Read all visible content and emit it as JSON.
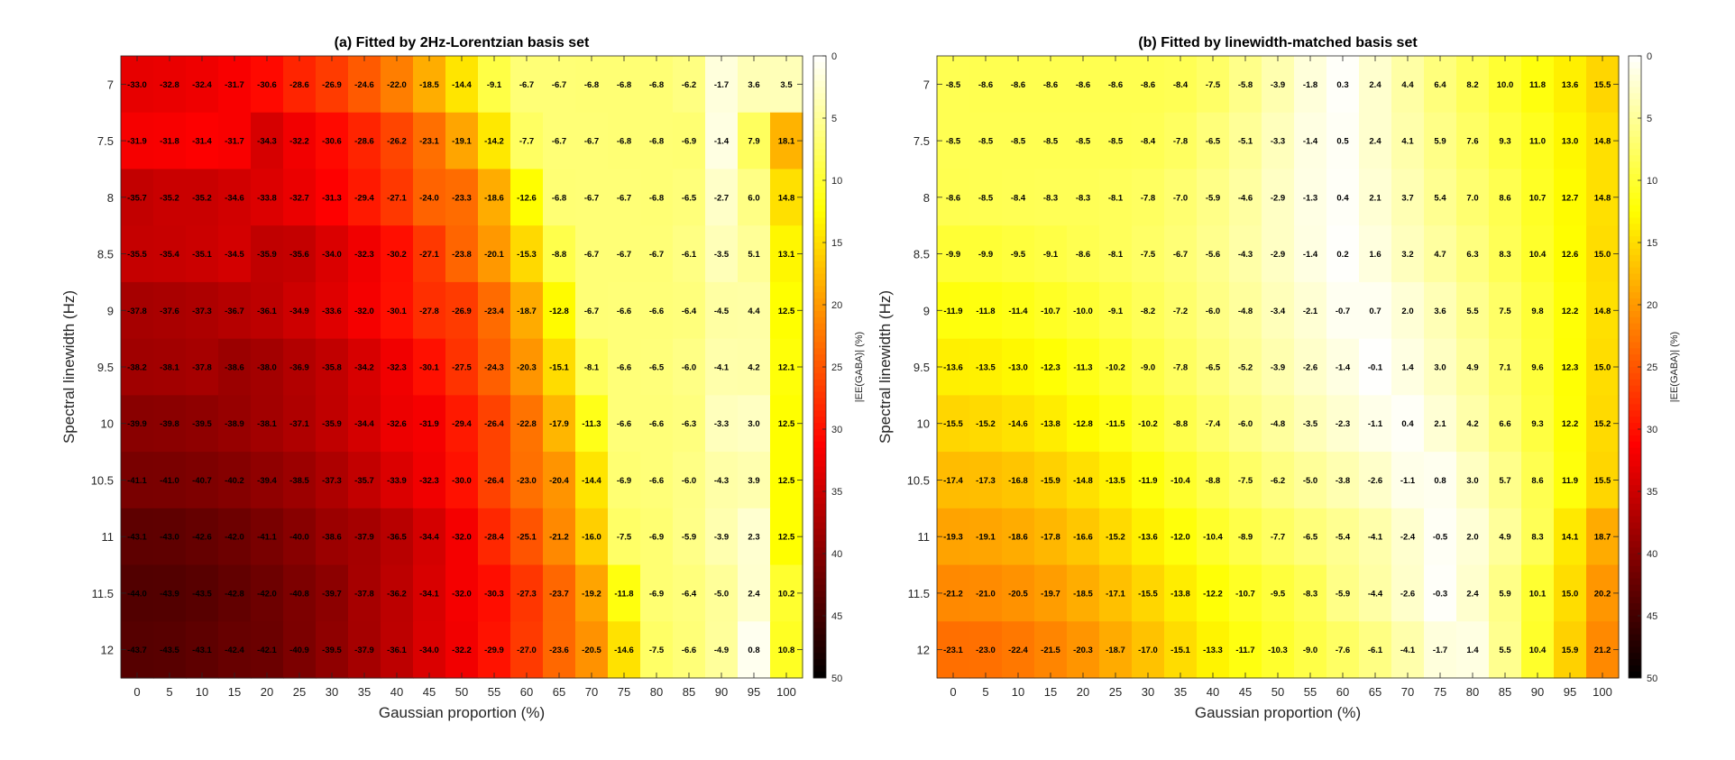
{
  "chart_data": [
    {
      "type": "heatmap",
      "title": "(a) Fitted by 2Hz-Lorentzian basis set",
      "xlabel": "Gaussian proportion (%)",
      "ylabel": "Spectral linewidth (Hz)",
      "x": [
        "0",
        "5",
        "10",
        "15",
        "20",
        "25",
        "30",
        "35",
        "40",
        "45",
        "50",
        "55",
        "60",
        "65",
        "70",
        "75",
        "80",
        "85",
        "90",
        "95",
        "100"
      ],
      "y": [
        "7",
        "7.5",
        "8",
        "8.5",
        "9",
        "9.5",
        "10",
        "10.5",
        "11",
        "11.5",
        "12"
      ],
      "colorbar": {
        "label": "|EE(GABA)| (%)",
        "range": [
          0,
          50
        ],
        "ticks": [
          "0",
          "5",
          "10",
          "15",
          "20",
          "25",
          "30",
          "35",
          "40",
          "45",
          "50"
        ],
        "colormap": "hot (reversed)"
      },
      "values": [
        [
          -33.0,
          -32.8,
          -32.4,
          -31.7,
          -30.6,
          -28.6,
          -26.9,
          -24.6,
          -22.0,
          -18.5,
          -14.4,
          -9.1,
          -6.7,
          -6.7,
          -6.8,
          -6.8,
          -6.8,
          -6.2,
          -1.7,
          3.6,
          3.5
        ],
        [
          -31.9,
          -31.8,
          -31.4,
          -31.7,
          -34.3,
          -32.2,
          -30.6,
          -28.6,
          -26.2,
          -23.1,
          -19.1,
          -14.2,
          -7.7,
          -6.7,
          -6.7,
          -6.8,
          -6.8,
          -6.9,
          -1.4,
          7.9,
          18.1
        ],
        [
          -35.7,
          -35.2,
          -35.2,
          -34.6,
          -33.8,
          -32.7,
          -31.3,
          -29.4,
          -27.1,
          -24.0,
          -23.3,
          -18.6,
          -12.6,
          -6.8,
          -6.7,
          -6.7,
          -6.8,
          -6.5,
          -2.7,
          6.0,
          14.8
        ],
        [
          -35.5,
          -35.4,
          -35.1,
          -34.5,
          -35.9,
          -35.6,
          -34.0,
          -32.3,
          -30.2,
          -27.1,
          -23.8,
          -20.1,
          -15.3,
          -8.8,
          -6.7,
          -6.7,
          -6.7,
          -6.1,
          -3.5,
          5.1,
          13.1
        ],
        [
          -37.8,
          -37.6,
          -37.3,
          -36.7,
          -36.1,
          -34.9,
          -33.6,
          -32.0,
          -30.1,
          -27.8,
          -26.9,
          -23.4,
          -18.7,
          -12.8,
          -6.7,
          -6.6,
          -6.6,
          -6.4,
          -4.5,
          4.4,
          12.5
        ],
        [
          -38.2,
          -38.1,
          -37.8,
          -38.6,
          -38.0,
          -36.9,
          -35.8,
          -34.2,
          -32.3,
          -30.1,
          -27.5,
          -24.3,
          -20.3,
          -15.1,
          -8.1,
          -6.6,
          -6.5,
          -6.0,
          -4.1,
          4.2,
          12.1
        ],
        [
          -39.9,
          -39.8,
          -39.5,
          -38.9,
          -38.1,
          -37.1,
          -35.9,
          -34.4,
          -32.6,
          -31.9,
          -29.4,
          -26.4,
          -22.8,
          -17.9,
          -11.3,
          -6.6,
          -6.6,
          -6.3,
          -3.3,
          3.0,
          12.5
        ],
        [
          -41.1,
          -41.0,
          -40.7,
          -40.2,
          -39.4,
          -38.5,
          -37.3,
          -35.7,
          -33.9,
          -32.3,
          -30.0,
          -26.4,
          -23.0,
          -20.4,
          -14.4,
          -6.9,
          -6.6,
          -6.0,
          -4.3,
          3.9,
          12.5
        ],
        [
          -43.1,
          -43.0,
          -42.6,
          -42.0,
          -41.1,
          -40.0,
          -38.6,
          -37.9,
          -36.5,
          -34.4,
          -32.0,
          -28.4,
          -25.1,
          -21.2,
          -16.0,
          -7.5,
          -6.9,
          -5.9,
          -3.9,
          2.3,
          12.5
        ],
        [
          -44.0,
          -43.9,
          -43.5,
          -42.8,
          -42.0,
          -40.8,
          -39.7,
          -37.8,
          -36.2,
          -34.1,
          -32.0,
          -30.3,
          -27.3,
          -23.7,
          -19.2,
          -11.8,
          -6.9,
          -6.4,
          -5.0,
          2.4,
          10.2
        ],
        [
          -43.7,
          -43.5,
          -43.1,
          -42.4,
          -42.1,
          -40.9,
          -39.5,
          -37.9,
          -36.1,
          -34.0,
          -32.2,
          -29.9,
          -27.0,
          -23.6,
          -20.5,
          -14.6,
          -7.5,
          -6.6,
          -4.9,
          0.8,
          10.8
        ]
      ]
    },
    {
      "type": "heatmap",
      "title": "(b) Fitted by linewidth-matched basis set",
      "xlabel": "Gaussian proportion (%)",
      "ylabel": "Spectral linewidth (Hz)",
      "x": [
        "0",
        "5",
        "10",
        "15",
        "20",
        "25",
        "30",
        "35",
        "40",
        "45",
        "50",
        "55",
        "60",
        "65",
        "70",
        "75",
        "80",
        "85",
        "90",
        "95",
        "100"
      ],
      "y": [
        "7",
        "7.5",
        "8",
        "8.5",
        "9",
        "9.5",
        "10",
        "10.5",
        "11",
        "11.5",
        "12"
      ],
      "colorbar": {
        "label": "|EE(GABA)| (%)",
        "range": [
          0,
          50
        ],
        "ticks": [
          "0",
          "5",
          "10",
          "15",
          "20",
          "25",
          "30",
          "35",
          "40",
          "45",
          "50"
        ],
        "colormap": "hot (reversed)"
      },
      "values": [
        [
          -8.5,
          -8.6,
          -8.6,
          -8.6,
          -8.6,
          -8.6,
          -8.6,
          -8.4,
          -7.5,
          -5.8,
          -3.9,
          -1.8,
          0.3,
          2.4,
          4.4,
          6.4,
          8.2,
          10.0,
          11.8,
          13.6,
          15.5
        ],
        [
          -8.5,
          -8.5,
          -8.5,
          -8.5,
          -8.5,
          -8.5,
          -8.4,
          -7.8,
          -6.5,
          -5.1,
          -3.3,
          -1.4,
          0.5,
          2.4,
          4.1,
          5.9,
          7.6,
          9.3,
          11.0,
          13.0,
          14.8
        ],
        [
          -8.6,
          -8.5,
          -8.4,
          -8.3,
          -8.3,
          -8.1,
          -7.8,
          -7.0,
          -5.9,
          -4.6,
          -2.9,
          -1.3,
          0.4,
          2.1,
          3.7,
          5.4,
          7.0,
          8.6,
          10.7,
          12.7,
          14.8
        ],
        [
          -9.9,
          -9.9,
          -9.5,
          -9.1,
          -8.6,
          -8.1,
          -7.5,
          -6.7,
          -5.6,
          -4.3,
          -2.9,
          -1.4,
          0.2,
          1.6,
          3.2,
          4.7,
          6.3,
          8.3,
          10.4,
          12.6,
          15.0
        ],
        [
          -11.9,
          -11.8,
          -11.4,
          -10.7,
          -10.0,
          -9.1,
          -8.2,
          -7.2,
          -6.0,
          -4.8,
          -3.4,
          -2.1,
          -0.7,
          0.7,
          2.0,
          3.6,
          5.5,
          7.5,
          9.8,
          12.2,
          14.8
        ],
        [
          -13.6,
          -13.5,
          -13.0,
          -12.3,
          -11.3,
          -10.2,
          -9.0,
          -7.8,
          -6.5,
          -5.2,
          -3.9,
          -2.6,
          -1.4,
          -0.1,
          1.4,
          3.0,
          4.9,
          7.1,
          9.6,
          12.3,
          15.0
        ],
        [
          -15.5,
          -15.2,
          -14.6,
          -13.8,
          -12.8,
          -11.5,
          -10.2,
          -8.8,
          -7.4,
          -6.0,
          -4.8,
          -3.5,
          -2.3,
          -1.1,
          0.4,
          2.1,
          4.2,
          6.6,
          9.3,
          12.2,
          15.2
        ],
        [
          -17.4,
          -17.3,
          -16.8,
          -15.9,
          -14.8,
          -13.5,
          -11.9,
          -10.4,
          -8.8,
          -7.5,
          -6.2,
          -5.0,
          -3.8,
          -2.6,
          -1.1,
          0.8,
          3.0,
          5.7,
          8.6,
          11.9,
          15.5
        ],
        [
          -19.3,
          -19.1,
          -18.6,
          -17.8,
          -16.6,
          -15.2,
          -13.6,
          -12.0,
          -10.4,
          -8.9,
          -7.7,
          -6.5,
          -5.4,
          -4.1,
          -2.4,
          -0.5,
          2.0,
          4.9,
          8.3,
          14.1,
          18.7
        ],
        [
          -21.2,
          -21.0,
          -20.5,
          -19.7,
          -18.5,
          -17.1,
          -15.5,
          -13.8,
          -12.2,
          -10.7,
          -9.5,
          -8.3,
          -5.9,
          -4.4,
          -2.6,
          -0.3,
          2.4,
          5.9,
          10.1,
          15.0,
          20.2
        ],
        [
          -23.1,
          -23.0,
          -22.4,
          -21.5,
          -20.3,
          -18.7,
          -17.0,
          -15.1,
          -13.3,
          -11.7,
          -10.3,
          -9.0,
          -7.6,
          -6.1,
          -4.1,
          -1.7,
          1.4,
          5.5,
          10.4,
          15.9,
          21.2
        ]
      ]
    }
  ]
}
